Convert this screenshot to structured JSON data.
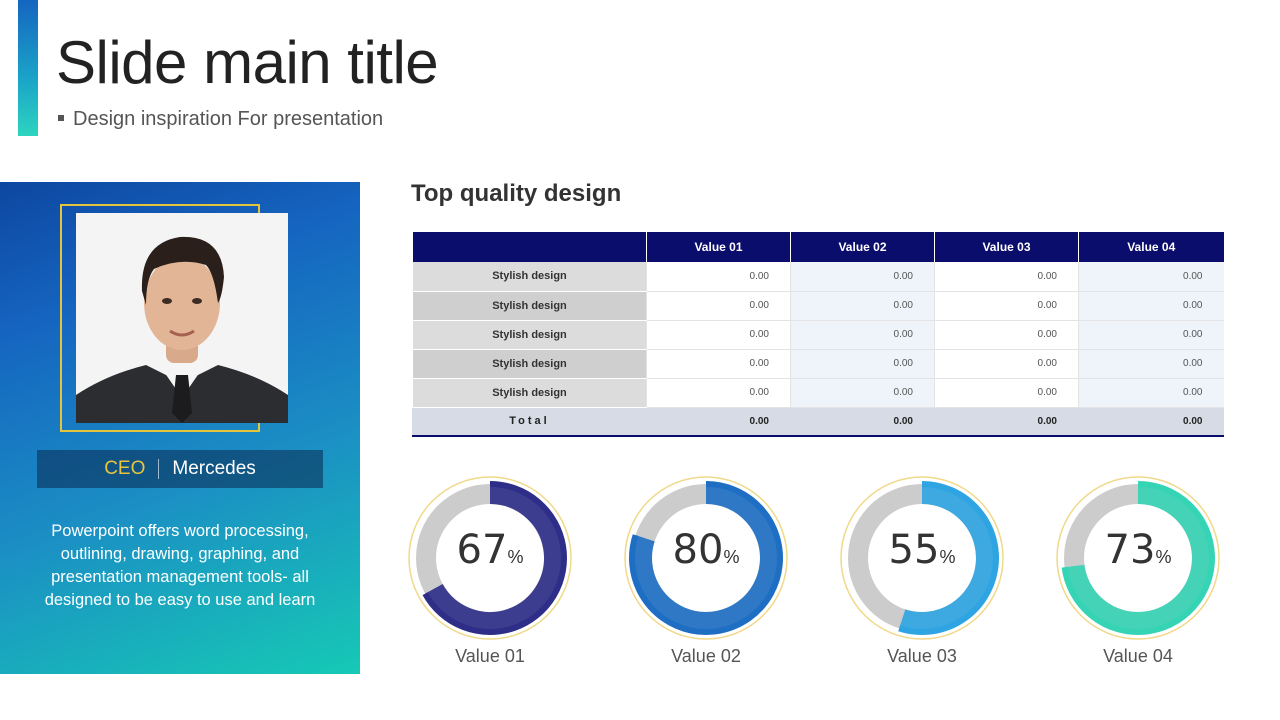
{
  "header": {
    "title": "Slide main title",
    "subtitle": "Design inspiration For presentation"
  },
  "profile": {
    "role": "CEO",
    "name": "Mercedes",
    "description": "Powerpoint offers word processing, outlining, drawing, graphing, and presentation management tools- all designed to be easy to use and learn"
  },
  "table_section": {
    "title": "Top quality design",
    "columns": [
      "",
      "Value 01",
      "Value 02",
      "Value 03",
      "Value 04"
    ],
    "rows": [
      {
        "label": "Stylish design",
        "values": [
          "0.00",
          "0.00",
          "0.00",
          "0.00"
        ]
      },
      {
        "label": "Stylish design",
        "values": [
          "0.00",
          "0.00",
          "0.00",
          "0.00"
        ]
      },
      {
        "label": "Stylish design",
        "values": [
          "0.00",
          "0.00",
          "0.00",
          "0.00"
        ]
      },
      {
        "label": "Stylish design",
        "values": [
          "0.00",
          "0.00",
          "0.00",
          "0.00"
        ]
      },
      {
        "label": "Stylish design",
        "values": [
          "0.00",
          "0.00",
          "0.00",
          "0.00"
        ]
      }
    ],
    "total": {
      "label": "Total",
      "values": [
        "0.00",
        "0.00",
        "0.00",
        "0.00"
      ]
    }
  },
  "chart_data": {
    "type": "pie",
    "categories": [
      "Value 01",
      "Value 02",
      "Value 03",
      "Value 04"
    ],
    "values": [
      67,
      80,
      55,
      73
    ],
    "unit": "%",
    "colors": [
      "#2e2d88",
      "#1e6fc4",
      "#2ea5e2",
      "#35d4b4"
    ],
    "track_color": "#cccccc",
    "ring_outline_color": "#f0d98a"
  },
  "colors": {
    "accent_gold": "#e8c53a",
    "table_header": "#0a0d6b",
    "panel_gradient": [
      "#0d47a1",
      "#1b8fc4",
      "#16c9b5"
    ]
  }
}
